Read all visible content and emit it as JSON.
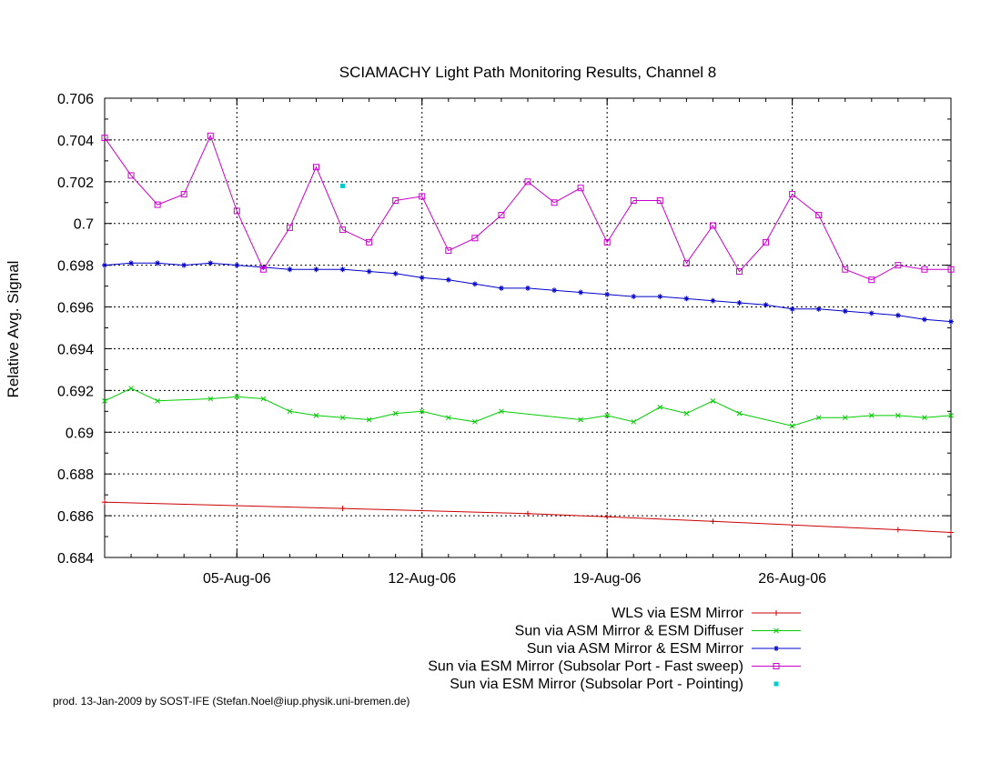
{
  "chart_data": {
    "type": "line",
    "title": "SCIAMACHY Light Path Monitoring Results, Channel 8",
    "xlabel": "",
    "ylabel": "Relative Avg. Signal",
    "xlim": [
      "2006-07-31",
      "2006-09-01"
    ],
    "ylim": [
      0.684,
      0.706
    ],
    "x_ticks": [
      {
        "date": "2006-08-05",
        "label": "05-Aug-06"
      },
      {
        "date": "2006-08-12",
        "label": "12-Aug-06"
      },
      {
        "date": "2006-08-19",
        "label": "19-Aug-06"
      },
      {
        "date": "2006-08-26",
        "label": "26-Aug-06"
      }
    ],
    "y_ticks": [
      {
        "value": 0.706,
        "label": "0.706"
      },
      {
        "value": 0.704,
        "label": "0.704"
      },
      {
        "value": 0.702,
        "label": "0.702"
      },
      {
        "value": 0.7,
        "label": "0.7"
      },
      {
        "value": 0.698,
        "label": "0.698"
      },
      {
        "value": 0.696,
        "label": "0.696"
      },
      {
        "value": 0.694,
        "label": "0.694"
      },
      {
        "value": 0.692,
        "label": "0.692"
      },
      {
        "value": 0.69,
        "label": "0.69"
      },
      {
        "value": 0.688,
        "label": "0.688"
      },
      {
        "value": 0.686,
        "label": "0.686"
      },
      {
        "value": 0.684,
        "label": "0.684"
      }
    ],
    "grid": true,
    "legend_position": "bottom-right",
    "series": [
      {
        "name": "WLS via ESM Mirror",
        "color": "#cc0000",
        "marker": "plus",
        "x": [
          "2006-07-31",
          "2006-08-09",
          "2006-08-16",
          "2006-08-19",
          "2006-08-23",
          "2006-08-30",
          "2006-09-01"
        ],
        "y": [
          0.68665,
          0.68635,
          0.6861,
          0.68595,
          0.68573,
          0.68533,
          0.6852
        ]
      },
      {
        "name": "Sun via ASM Mirror & ESM Diffuser",
        "color": "#00cc00",
        "marker": "x",
        "x": [
          "2006-07-31",
          "2006-08-01",
          "2006-08-02",
          "2006-08-04",
          "2006-08-05",
          "2006-08-06",
          "2006-08-07",
          "2006-08-08",
          "2006-08-09",
          "2006-08-10",
          "2006-08-11",
          "2006-08-12",
          "2006-08-13",
          "2006-08-14",
          "2006-08-15",
          "2006-08-18",
          "2006-08-19",
          "2006-08-20",
          "2006-08-21",
          "2006-08-22",
          "2006-08-23",
          "2006-08-24",
          "2006-08-26",
          "2006-08-27",
          "2006-08-28",
          "2006-08-29",
          "2006-08-30",
          "2006-08-31",
          "2006-09-01"
        ],
        "y": [
          0.6915,
          0.6921,
          0.6915,
          0.6916,
          0.6917,
          0.6916,
          0.691,
          0.6908,
          0.6907,
          0.6906,
          0.6909,
          0.691,
          0.6907,
          0.6905,
          0.691,
          0.6906,
          0.6908,
          0.6905,
          0.6912,
          0.6909,
          0.6915,
          0.6909,
          0.6903,
          0.6907,
          0.6907,
          0.6908,
          0.6908,
          0.6907,
          0.6908
        ]
      },
      {
        "name": "Sun via ASM Mirror & ESM Mirror",
        "color": "#0000cc",
        "marker": "star",
        "x": [
          "2006-07-31",
          "2006-08-01",
          "2006-08-02",
          "2006-08-03",
          "2006-08-04",
          "2006-08-05",
          "2006-08-06",
          "2006-08-07",
          "2006-08-08",
          "2006-08-09",
          "2006-08-10",
          "2006-08-11",
          "2006-08-12",
          "2006-08-13",
          "2006-08-14",
          "2006-08-15",
          "2006-08-16",
          "2006-08-17",
          "2006-08-18",
          "2006-08-19",
          "2006-08-20",
          "2006-08-21",
          "2006-08-22",
          "2006-08-23",
          "2006-08-24",
          "2006-08-25",
          "2006-08-26",
          "2006-08-27",
          "2006-08-28",
          "2006-08-29",
          "2006-08-30",
          "2006-08-31",
          "2006-09-01"
        ],
        "y": [
          0.698,
          0.6981,
          0.6981,
          0.698,
          0.6981,
          0.698,
          0.6979,
          0.6978,
          0.6978,
          0.6978,
          0.6977,
          0.6976,
          0.6974,
          0.6973,
          0.6971,
          0.6969,
          0.6969,
          0.6968,
          0.6967,
          0.6966,
          0.6965,
          0.6965,
          0.6964,
          0.6963,
          0.6962,
          0.6961,
          0.6959,
          0.6959,
          0.6958,
          0.6957,
          0.6956,
          0.6954,
          0.6953
        ]
      },
      {
        "name": "Sun via ESM Mirror (Subsolar Port - Fast sweep)",
        "color": "#cc00cc",
        "marker": "square",
        "x": [
          "2006-07-31",
          "2006-08-01",
          "2006-08-02",
          "2006-08-03",
          "2006-08-04",
          "2006-08-05",
          "2006-08-06",
          "2006-08-07",
          "2006-08-08",
          "2006-08-09",
          "2006-08-10",
          "2006-08-11",
          "2006-08-12",
          "2006-08-13",
          "2006-08-14",
          "2006-08-15",
          "2006-08-16",
          "2006-08-17",
          "2006-08-18",
          "2006-08-19",
          "2006-08-20",
          "2006-08-21",
          "2006-08-22",
          "2006-08-23",
          "2006-08-24",
          "2006-08-25",
          "2006-08-26",
          "2006-08-27",
          "2006-08-28",
          "2006-08-29",
          "2006-08-30",
          "2006-08-31",
          "2006-09-01"
        ],
        "y": [
          0.7041,
          0.7023,
          0.7009,
          0.7014,
          0.7042,
          0.7006,
          0.6978,
          0.6998,
          0.7027,
          0.6997,
          0.6991,
          0.7011,
          0.7013,
          0.6987,
          0.6993,
          0.7004,
          0.702,
          0.701,
          0.7017,
          0.6991,
          0.7011,
          0.7011,
          0.6981,
          0.6999,
          0.6977,
          0.6991,
          0.7014,
          0.7004,
          0.6978,
          0.6973,
          0.698,
          0.6978,
          0.6978
        ]
      },
      {
        "name": "Sun via ESM Mirror (Subsolar Port - Pointing)",
        "color": "#00cccc",
        "marker": "dot",
        "x": [
          "2006-08-09"
        ],
        "y": [
          0.7018
        ]
      }
    ]
  },
  "footer": "prod. 13-Jan-2009 by SOST-IFE (Stefan.Noel@iup.physik.uni-bremen.de)"
}
